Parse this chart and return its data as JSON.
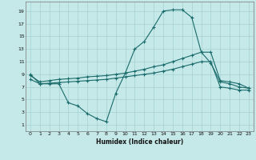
{
  "xlabel": "Humidex (Indice chaleur)",
  "bg_color": "#c5e8e8",
  "grid_color": "#aad4d4",
  "line_color": "#1a6b6b",
  "xlim": [
    -0.5,
    23.5
  ],
  "ylim": [
    0,
    20.5
  ],
  "xticks": [
    0,
    1,
    2,
    3,
    4,
    5,
    6,
    7,
    8,
    9,
    10,
    11,
    12,
    13,
    14,
    15,
    16,
    17,
    18,
    19,
    20,
    21,
    22,
    23
  ],
  "yticks": [
    1,
    3,
    5,
    7,
    9,
    11,
    13,
    15,
    17,
    19
  ],
  "curve1_x": [
    0,
    1,
    2,
    3,
    4,
    5,
    6,
    7,
    8,
    9,
    10,
    11,
    12,
    13,
    14,
    15,
    16,
    17,
    18,
    19,
    20,
    21,
    22,
    23
  ],
  "curve1_y": [
    9,
    7.5,
    7.5,
    7.5,
    4.5,
    4.0,
    2.8,
    2.0,
    1.5,
    6.0,
    9.2,
    13.0,
    14.2,
    16.5,
    19.0,
    19.2,
    19.2,
    18.0,
    12.5,
    10.8,
    7.8,
    7.5,
    7.0,
    6.8
  ],
  "curve2_x": [
    0,
    1,
    2,
    3,
    4,
    5,
    6,
    7,
    8,
    9,
    10,
    11,
    12,
    13,
    14,
    15,
    16,
    17,
    18,
    19,
    20,
    21,
    22,
    23
  ],
  "curve2_y": [
    8.8,
    7.8,
    8.0,
    8.2,
    8.3,
    8.4,
    8.6,
    8.7,
    8.8,
    9.0,
    9.2,
    9.5,
    9.8,
    10.2,
    10.5,
    11.0,
    11.5,
    12.0,
    12.5,
    12.5,
    8.0,
    7.8,
    7.5,
    6.8
  ],
  "curve3_x": [
    0,
    1,
    2,
    3,
    4,
    5,
    6,
    7,
    8,
    9,
    10,
    11,
    12,
    13,
    14,
    15,
    16,
    17,
    18,
    19,
    20,
    21,
    22,
    23
  ],
  "curve3_y": [
    8.2,
    7.5,
    7.6,
    7.7,
    7.8,
    7.9,
    8.0,
    8.1,
    8.2,
    8.4,
    8.6,
    8.8,
    9.0,
    9.2,
    9.5,
    9.8,
    10.2,
    10.6,
    11.0,
    11.0,
    7.0,
    6.8,
    6.5,
    6.5
  ]
}
